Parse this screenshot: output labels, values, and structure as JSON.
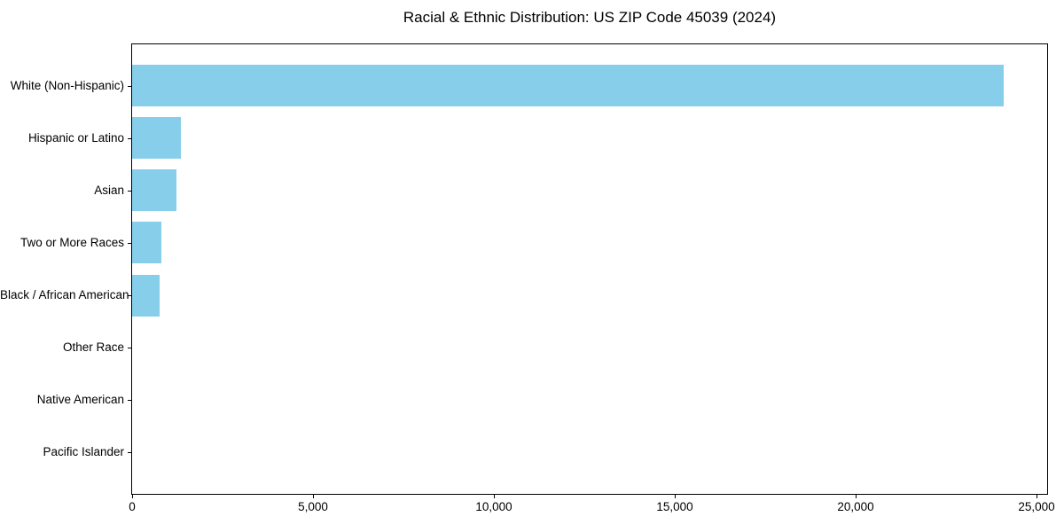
{
  "chart_data": {
    "type": "bar",
    "orientation": "horizontal",
    "title": "Racial & Ethnic Distribution: US ZIP Code 45039 (2024)",
    "categories": [
      "White (Non-Hispanic)",
      "Hispanic or Latino",
      "Asian",
      "Two or More Races",
      "Black / African American",
      "Other Race",
      "Native American",
      "Pacific Islander"
    ],
    "values": [
      24100,
      1350,
      1230,
      800,
      760,
      0,
      0,
      0
    ],
    "xlabel": "",
    "ylabel": "",
    "xlim": [
      0,
      25305
    ],
    "x_ticks": [
      0,
      5000,
      10000,
      15000,
      20000,
      25000
    ],
    "x_tick_labels": [
      "0",
      "5,000",
      "10,000",
      "15,000",
      "20,000",
      "25,000"
    ],
    "bar_color": "#87CEEB",
    "text_color": "#000000",
    "background_color": "#ffffff",
    "grid": false,
    "legend": "none"
  }
}
